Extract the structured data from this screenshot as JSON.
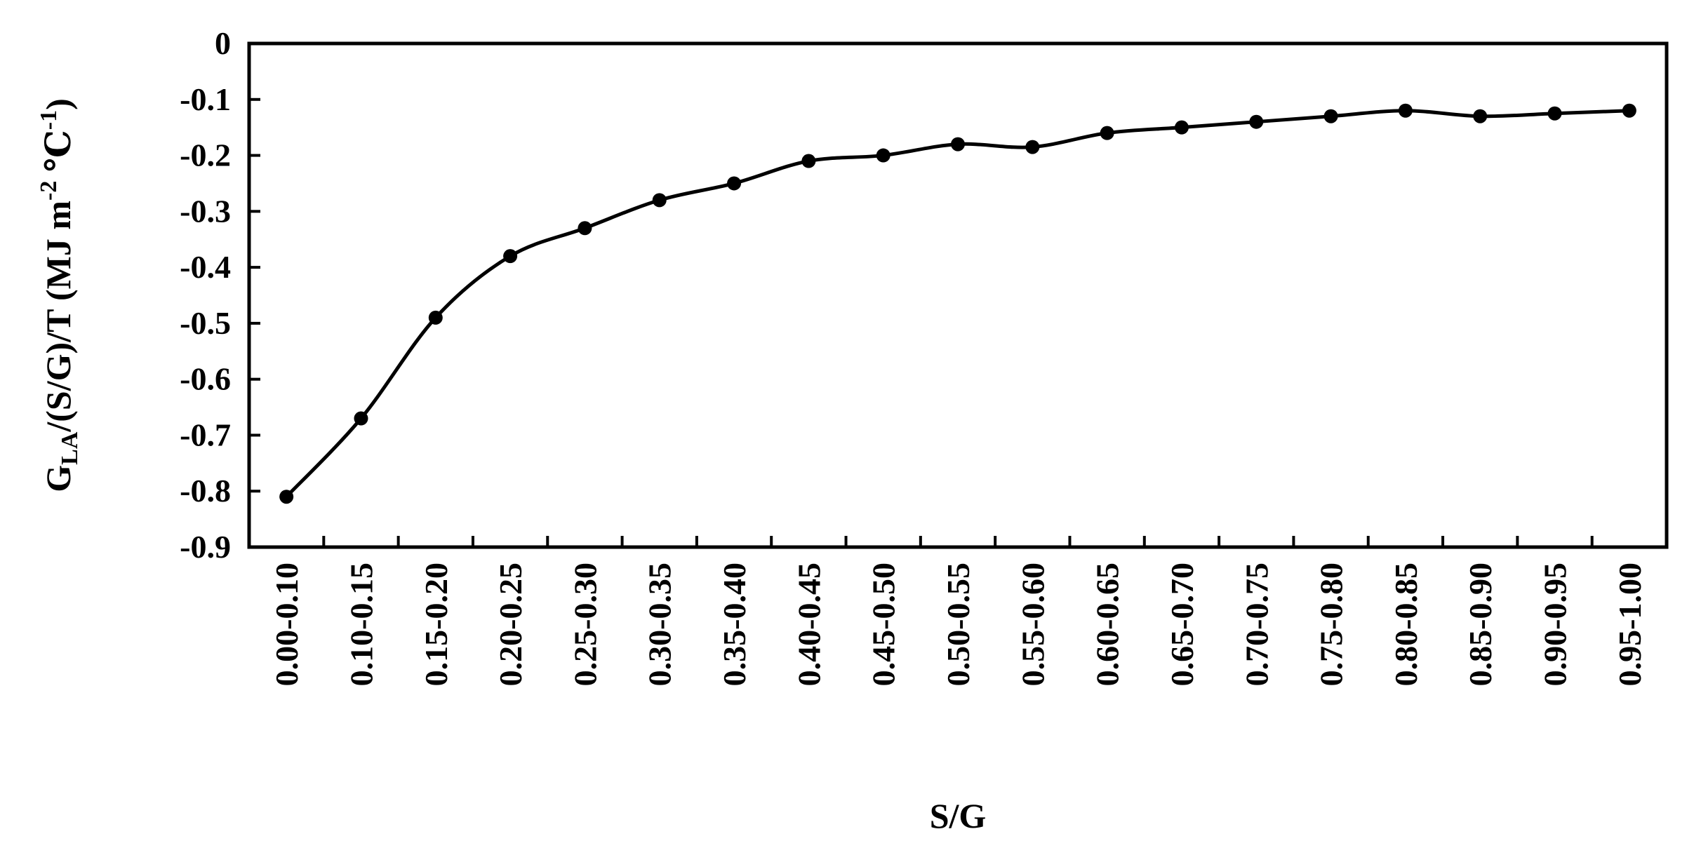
{
  "chart_data": {
    "type": "line",
    "title": "",
    "xlabel": "S/G",
    "ylabel": {
      "prefix": "G",
      "prefix_sub": "LA",
      "middle": "/(S/G)/T  (MJ m",
      "exp1": "-2",
      "unit": " ℃",
      "exp2": "-1",
      "suffix": ")"
    },
    "categories": [
      "0.00-0.10",
      "0.10-0.15",
      "0.15-0.20",
      "0.20-0.25",
      "0.25-0.30",
      "0.30-0.35",
      "0.35-0.40",
      "0.40-0.45",
      "0.45-0.50",
      "0.50-0.55",
      "0.55-0.60",
      "0.60-0.65",
      "0.65-0.70",
      "0.70-0.75",
      "0.75-0.80",
      "0.80-0.85",
      "0.85-0.90",
      "0.90-0.95",
      "0.95-1.00"
    ],
    "series": [
      {
        "values": [
          -0.81,
          -0.67,
          -0.49,
          -0.38,
          -0.33,
          -0.28,
          -0.25,
          -0.21,
          -0.2,
          -0.18,
          -0.185,
          -0.16,
          -0.15,
          -0.14,
          -0.13,
          -0.12,
          -0.13,
          -0.125,
          -0.12
        ],
        "color": "#000000",
        "marker": "circle"
      }
    ],
    "ylim": [
      -0.9,
      0
    ],
    "yticks": [
      "0",
      "-0.1",
      "-0.2",
      "-0.3",
      "-0.4",
      "-0.5",
      "-0.6",
      "-0.7",
      "-0.8",
      "-0.9"
    ],
    "grid": false,
    "legend": "none",
    "colors": {
      "axis": "#000000",
      "line": "#000000",
      "ylabel": "#7a4a1e"
    }
  }
}
